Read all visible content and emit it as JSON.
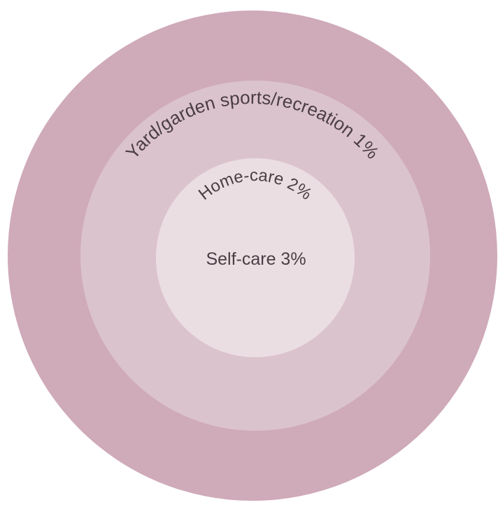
{
  "rings": {
    "outer": {
      "label": "Yard/garden sports/recreation 1%",
      "color": "#cfaab9"
    },
    "middle": {
      "label": "Home-care 2%",
      "color": "#dbc3cd"
    },
    "inner": {
      "label": "Self-care 3%",
      "color": "#ebdee3"
    }
  }
}
